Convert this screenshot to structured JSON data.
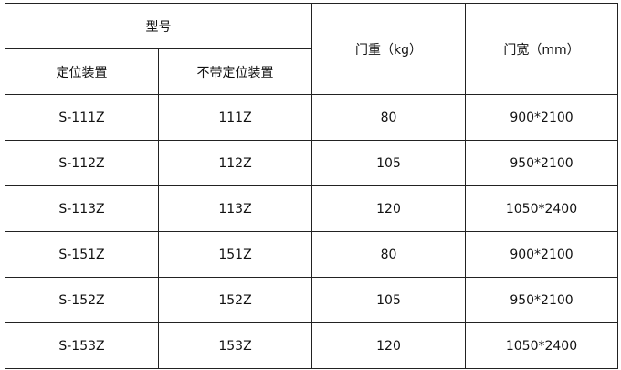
{
  "header": {
    "model": "型号",
    "with_positioning": "定位装置",
    "without_positioning": "不带定位装置",
    "door_weight": "门重（kg）",
    "door_width": "门宽（mm）"
  },
  "rows": [
    {
      "with": "S-111Z",
      "without": "111Z",
      "weight": "80",
      "size": "900*2100"
    },
    {
      "with": "S-112Z",
      "without": "112Z",
      "weight": "105",
      "size": "950*2100"
    },
    {
      "with": "S-113Z",
      "without": "113Z",
      "weight": "120",
      "size": "1050*2400"
    },
    {
      "with": "S-151Z",
      "without": "151Z",
      "weight": "80",
      "size": "900*2100"
    },
    {
      "with": "S-152Z",
      "without": "152Z",
      "weight": "105",
      "size": "950*2100"
    },
    {
      "with": "S-153Z",
      "without": "153Z",
      "weight": "120",
      "size": "1050*2400"
    }
  ]
}
